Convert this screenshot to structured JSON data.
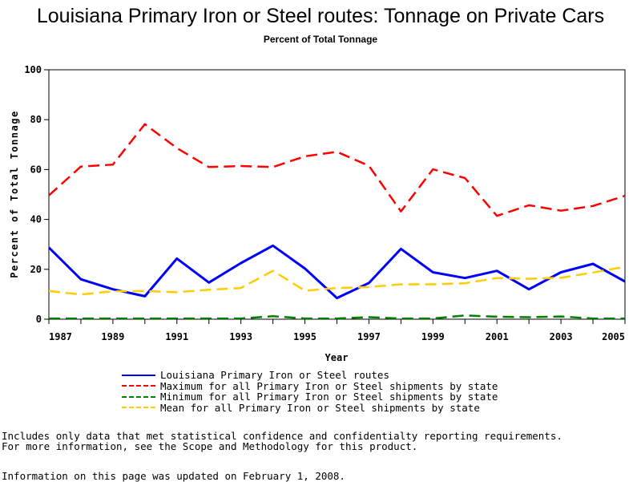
{
  "title": "Louisiana Primary Iron or Steel routes: Tonnage on Private Cars",
  "subtitle": "Percent of Total Tonnage",
  "footnotes": {
    "line1": "Includes only data that met statistical confidence and confidentialty reporting requirements.",
    "line2": "For more information, see the Scope and Methodology for this product.",
    "line3": "Information on this page was updated on February 1, 2008."
  },
  "chart_data": {
    "type": "line",
    "title": "Louisiana Primary Iron or Steel routes: Tonnage on Private Cars",
    "subtitle": "Percent of Total Tonnage",
    "xlabel": "Year",
    "ylabel": "Percent of Total Tonnage",
    "xlim": [
      1987,
      2005
    ],
    "ylim": [
      0,
      100
    ],
    "x": [
      1987,
      1988,
      1989,
      1990,
      1991,
      1992,
      1993,
      1994,
      1995,
      1996,
      1997,
      1998,
      1999,
      2000,
      2001,
      2002,
      2003,
      2004,
      2005
    ],
    "x_ticks": [
      "1987",
      "1989",
      "1991",
      "1993",
      "1995",
      "1997",
      "1999",
      "2001",
      "2003",
      "2005"
    ],
    "y_ticks": [
      "0",
      "20",
      "40",
      "60",
      "80",
      "100"
    ],
    "grid": false,
    "legend_position": "bottom",
    "series": [
      {
        "name": "Louisiana Primary Iron or Steel routes",
        "color": "#0000ff",
        "dash": "solid",
        "values": [
          28.7,
          16,
          12,
          9.2,
          24.3,
          14.7,
          22.5,
          29.5,
          20.3,
          8.5,
          14.5,
          28.2,
          18.8,
          16.5,
          19.4,
          12,
          18.8,
          22.2,
          15.1
        ]
      },
      {
        "name": "Maximum for all Primary Iron or Steel shipments by state",
        "color": "#ff0000",
        "dash": "dashed",
        "values": [
          49.6,
          61.2,
          62,
          78.2,
          68.6,
          61,
          61.4,
          61,
          65.3,
          67.1,
          61.5,
          43.2,
          60.1,
          56.6,
          41.4,
          45.7,
          43.5,
          45.4,
          49.5
        ]
      },
      {
        "name": "Minimum for all Primary Iron or Steel shipments by state",
        "color": "#008000",
        "dash": "dashed",
        "values": [
          0.3,
          0.3,
          0.3,
          0.3,
          0.3,
          0.3,
          0.3,
          1.2,
          0.3,
          0.3,
          0.8,
          0.3,
          0.3,
          1.5,
          1,
          0.8,
          1.1,
          0.3,
          0.3
        ]
      },
      {
        "name": "Mean for all Primary Iron or Steel shipments by state",
        "color": "#ffcc00",
        "dash": "dashed",
        "values": [
          11.3,
          9.9,
          11.2,
          11.3,
          10.8,
          11.8,
          12.5,
          19.4,
          11.4,
          12.5,
          12.9,
          14,
          14,
          14.4,
          16.5,
          16.2,
          16.6,
          18.7,
          21
        ]
      }
    ]
  }
}
